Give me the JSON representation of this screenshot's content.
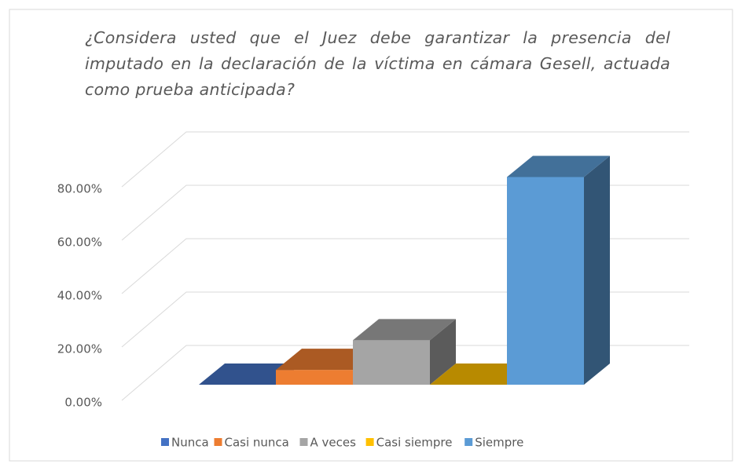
{
  "chart_data": {
    "type": "bar3d",
    "title": "¿Considera usted que el Juez debe garantizar la presencia del imputado en la declaración de la víctima en cámara Gesell, actuada como prueba anticipada?",
    "categories": [
      "Nunca",
      "Casi nunca",
      "A veces",
      "Casi siempre",
      "Siempre"
    ],
    "values": [
      0,
      5.56,
      16.67,
      0,
      77.78
    ],
    "colors": [
      "#4472c4",
      "#ed7d31",
      "#a5a5a5",
      "#ffc000",
      "#5b9bd5"
    ],
    "ylim": [
      0,
      80
    ],
    "yticks": [
      {
        "value": 0,
        "label": "0.00%"
      },
      {
        "value": 20,
        "label": "20.00%"
      },
      {
        "value": 40,
        "label": "40.00%"
      },
      {
        "value": 60,
        "label": "60.00%"
      },
      {
        "value": 80,
        "label": "80.00%"
      }
    ],
    "grid": true,
    "legend": "bottom"
  }
}
